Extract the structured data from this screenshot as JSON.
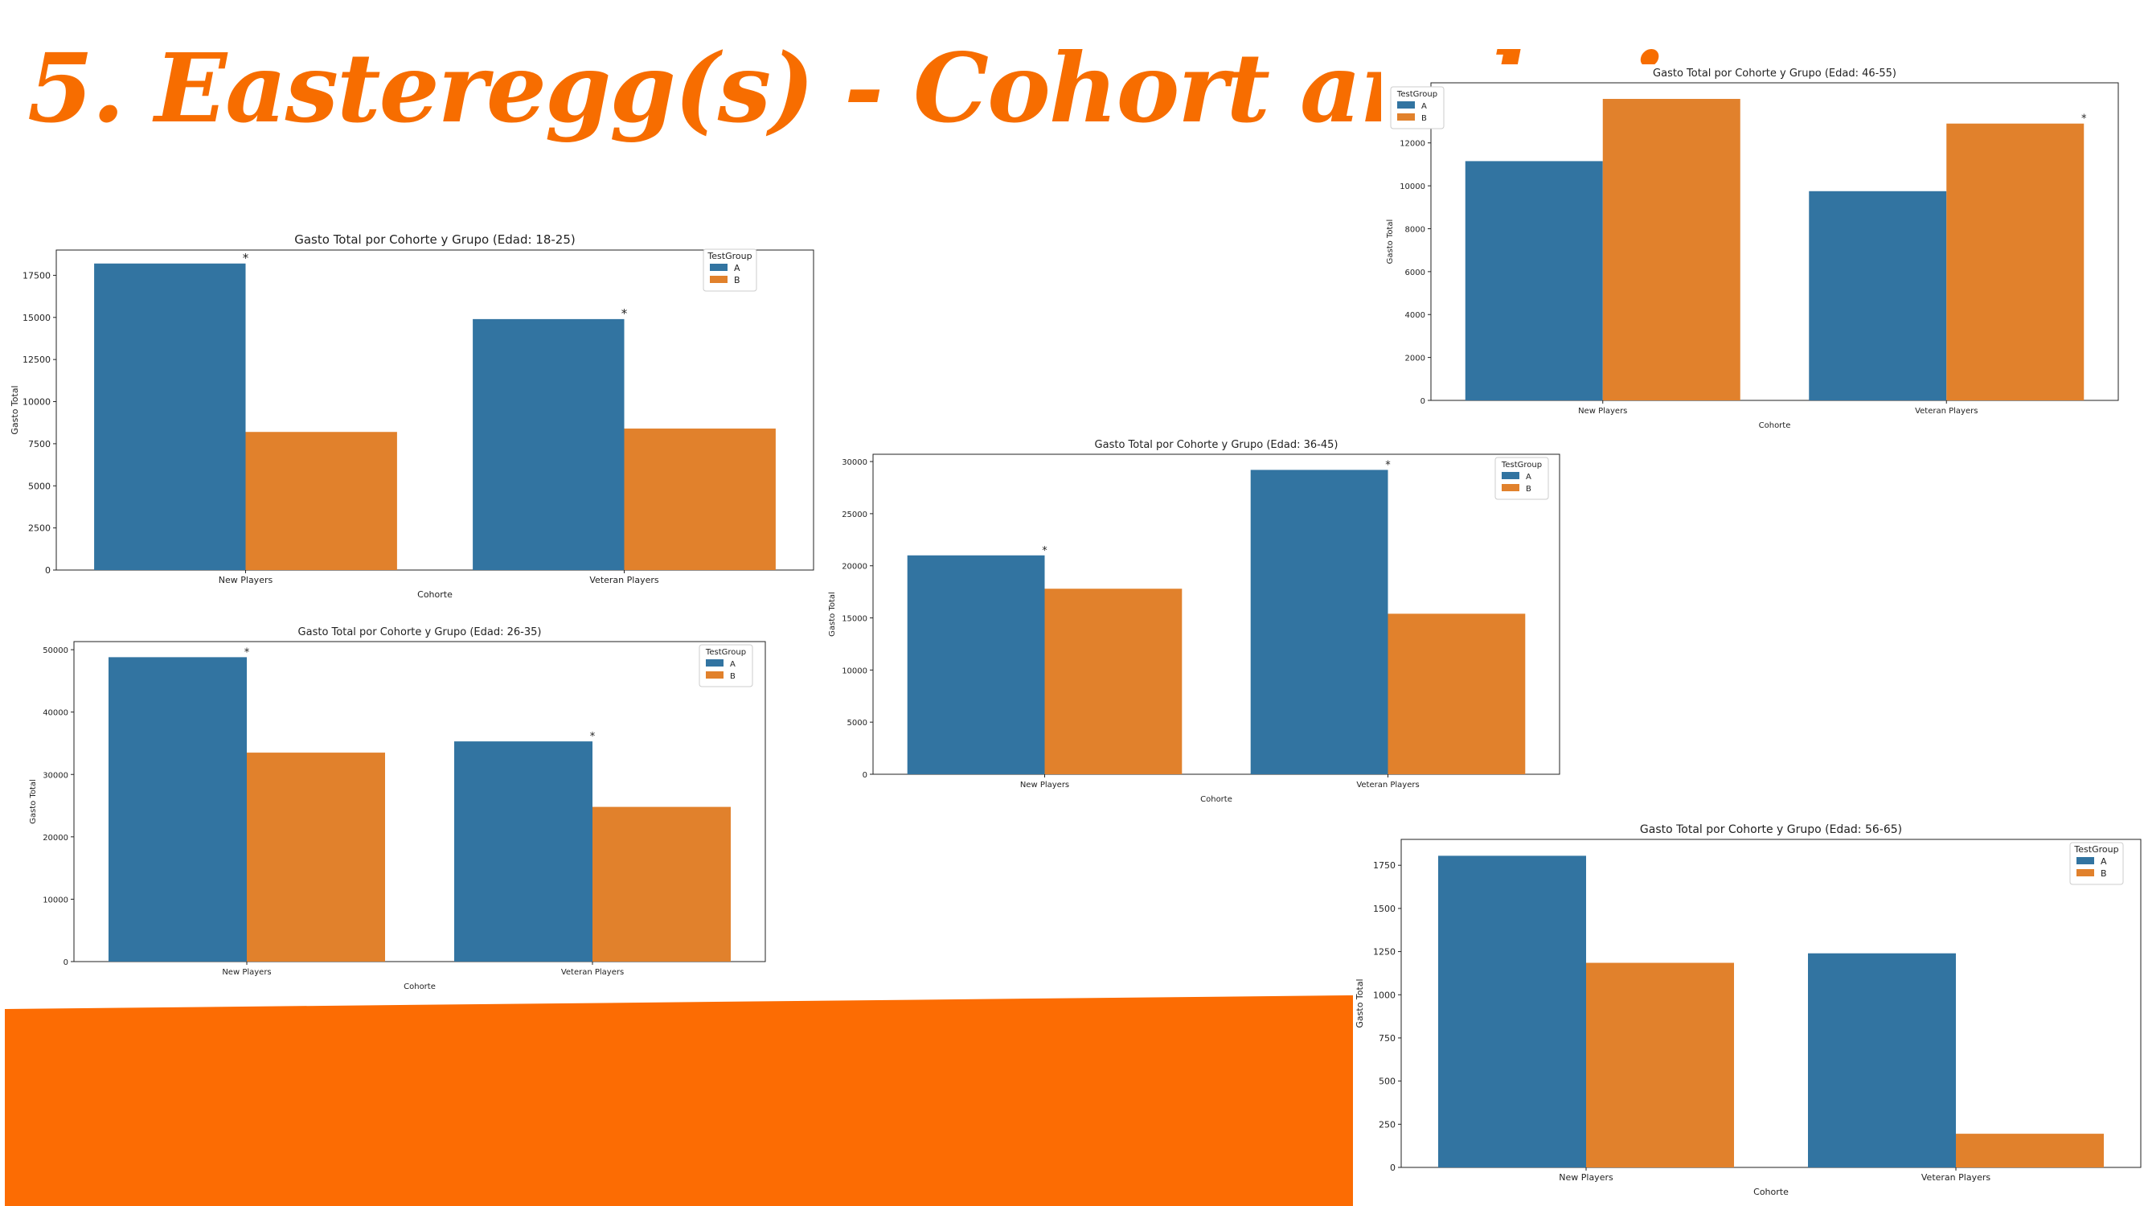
{
  "slide": {
    "title": "5. Easteregg(s) - Cohort analysis",
    "accent_color": "#f76d00"
  },
  "chart_data": [
    {
      "type": "bar",
      "title": "Gasto Total por Cohorte y Grupo (Edad: 18-25)",
      "xlabel": "Cohorte",
      "ylabel": "Gasto Total",
      "categories": [
        "New Players",
        "Veteran Players"
      ],
      "series": [
        {
          "name": "A",
          "color": "#3274a1",
          "values": [
            18200,
            14900
          ]
        },
        {
          "name": "B",
          "color": "#e1812c",
          "values": [
            8200,
            8400
          ]
        }
      ],
      "yticks": [
        0,
        2500,
        5000,
        7500,
        10000,
        12500,
        15000,
        17500
      ],
      "ylim": [
        0,
        19000
      ],
      "legend_title": "TestGroup",
      "legend_position": "top-right",
      "significance": [
        {
          "series": 0,
          "category": 0,
          "mark": "*"
        },
        {
          "series": 0,
          "category": 1,
          "mark": "*"
        }
      ]
    },
    {
      "type": "bar",
      "title": "Gasto Total por Cohorte y Grupo (Edad: 26-35)",
      "xlabel": "Cohorte",
      "ylabel": "Gasto Total",
      "categories": [
        "New Players",
        "Veteran Players"
      ],
      "series": [
        {
          "name": "A",
          "color": "#3274a1",
          "values": [
            48800,
            35300
          ]
        },
        {
          "name": "B",
          "color": "#e1812c",
          "values": [
            33500,
            24800
          ]
        }
      ],
      "yticks": [
        0,
        10000,
        20000,
        30000,
        40000,
        50000
      ],
      "ylim": [
        0,
        51300
      ],
      "legend_title": "TestGroup",
      "legend_position": "top-right",
      "significance": [
        {
          "series": 0,
          "category": 0,
          "mark": "*"
        },
        {
          "series": 0,
          "category": 1,
          "mark": "*"
        }
      ]
    },
    {
      "type": "bar",
      "title": "Gasto Total por Cohorte y Grupo (Edad: 36-45)",
      "xlabel": "Cohorte",
      "ylabel": "Gasto Total",
      "categories": [
        "New Players",
        "Veteran Players"
      ],
      "series": [
        {
          "name": "A",
          "color": "#3274a1",
          "values": [
            21000,
            29200
          ]
        },
        {
          "name": "B",
          "color": "#e1812c",
          "values": [
            17800,
            15400
          ]
        }
      ],
      "yticks": [
        0,
        5000,
        10000,
        15000,
        20000,
        25000,
        30000
      ],
      "ylim": [
        0,
        30700
      ],
      "legend_title": "TestGroup",
      "legend_position": "top-right",
      "significance": [
        {
          "series": 0,
          "category": 0,
          "mark": "*"
        },
        {
          "series": 0,
          "category": 1,
          "mark": "*"
        }
      ]
    },
    {
      "type": "bar",
      "title": "Gasto Total por Cohorte y Grupo (Edad: 46-55)",
      "xlabel": "Cohorte",
      "ylabel": "Gasto Total",
      "categories": [
        "New Players",
        "Veteran Players"
      ],
      "series": [
        {
          "name": "A",
          "color": "#3274a1",
          "values": [
            11150,
            9750
          ]
        },
        {
          "name": "B",
          "color": "#e1812c",
          "values": [
            14050,
            12900
          ]
        }
      ],
      "yticks": [
        0,
        2000,
        4000,
        6000,
        8000,
        10000,
        12000,
        14000
      ],
      "ylim": [
        0,
        14800
      ],
      "legend_title": "TestGroup",
      "legend_position": "top-left",
      "significance": [
        {
          "series": 1,
          "category": 1,
          "mark": "*"
        }
      ]
    },
    {
      "type": "bar",
      "title": "Gasto Total por Cohorte y Grupo (Edad: 56-65)",
      "xlabel": "Cohorte",
      "ylabel": "Gasto Total",
      "categories": [
        "New Players",
        "Veteran Players"
      ],
      "series": [
        {
          "name": "A",
          "color": "#3274a1",
          "values": [
            1805,
            1240
          ]
        },
        {
          "name": "B",
          "color": "#e1812c",
          "values": [
            1185,
            195
          ]
        }
      ],
      "yticks": [
        0,
        250,
        500,
        750,
        1000,
        1250,
        1500,
        1750
      ],
      "ylim": [
        0,
        1900
      ],
      "legend_title": "TestGroup",
      "legend_position": "top-right",
      "significance": []
    }
  ]
}
